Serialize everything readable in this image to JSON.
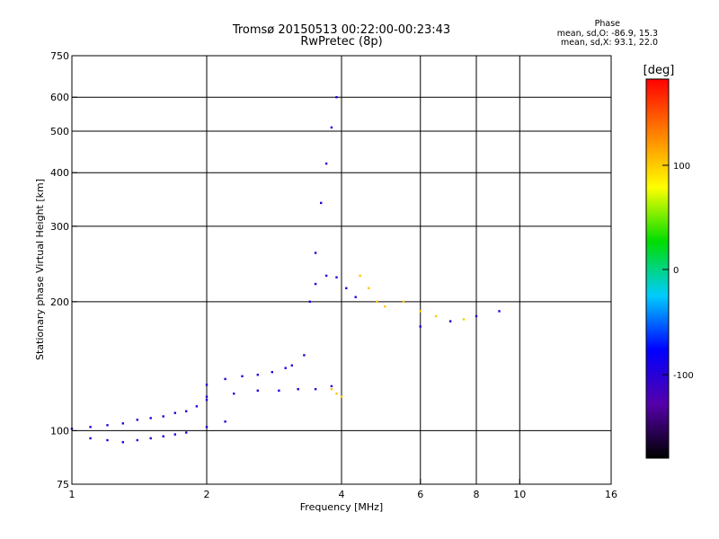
{
  "header": {
    "title_line1": "Tromsø 20150513 00:22:00-00:23:43",
    "title_line2": "RwPretec (8p)"
  },
  "stats": {
    "heading": "Phase",
    "o_line": "mean, sd,O: -86.9, 15.3",
    "x_line": "mean, sd,X:  93.1, 22.0"
  },
  "colorbar": {
    "label": "[deg]",
    "tick_labels": [
      "100",
      "0",
      "-100"
    ],
    "stops": [
      "#000000",
      "#5500aa",
      "#0000ff",
      "#00ccff",
      "#00dd00",
      "#ffff00",
      "#ff8000",
      "#ff0000"
    ]
  },
  "chart_data": {
    "type": "scatter",
    "title": "Tromsø 20150513 00:22:00-00:23:43",
    "subtitle": "RwPretec (8p)",
    "xlabel": "Frequency [MHz]",
    "ylabel": "Stationary phase Virtual Height [km]",
    "x_scale": "log",
    "y_scale": "log",
    "xlim": [
      1,
      16
    ],
    "ylim": [
      75,
      750
    ],
    "x_ticks": [
      1,
      2,
      4,
      6,
      8,
      10,
      16
    ],
    "x_tick_labels": [
      "1",
      "2",
      "4",
      "6",
      "8",
      "10",
      "16"
    ],
    "y_ticks": [
      75,
      100,
      200,
      300,
      400,
      500,
      600,
      750
    ],
    "y_tick_labels": [
      "75",
      "100",
      "200",
      "300",
      "400",
      "500",
      "600",
      "750"
    ],
    "grid": true,
    "color_scale": {
      "label": "[deg]",
      "range": [
        -180,
        180
      ],
      "ticks": [
        100,
        0,
        -100
      ]
    },
    "traces": [
      {
        "name": "",
        "phase": -100,
        "points": [
          [
            1.0,
            101
          ],
          [
            1.1,
            102
          ],
          [
            1.2,
            103
          ],
          [
            1.3,
            104
          ],
          [
            1.4,
            106
          ],
          [
            1.5,
            107
          ],
          [
            1.6,
            108
          ],
          [
            1.7,
            110
          ],
          [
            1.8,
            111
          ],
          [
            1.9,
            114
          ],
          [
            2.0,
            118
          ]
        ]
      },
      {
        "name": "",
        "phase": -100,
        "points": [
          [
            1.1,
            96
          ],
          [
            1.2,
            95
          ],
          [
            1.3,
            94
          ],
          [
            1.4,
            95
          ],
          [
            1.5,
            96
          ],
          [
            1.6,
            97
          ],
          [
            1.7,
            98
          ],
          [
            1.8,
            99
          ],
          [
            2.0,
            102
          ],
          [
            2.2,
            105
          ]
        ]
      },
      {
        "name": "",
        "phase": -100,
        "points": [
          [
            2.0,
            128
          ],
          [
            2.2,
            132
          ],
          [
            2.4,
            134
          ],
          [
            2.6,
            135
          ],
          [
            2.8,
            137
          ],
          [
            3.0,
            140
          ],
          [
            3.1,
            142
          ]
        ]
      },
      {
        "name": "",
        "phase": -100,
        "points": [
          [
            2.0,
            120
          ],
          [
            2.3,
            122
          ],
          [
            2.6,
            124
          ],
          [
            2.9,
            124
          ],
          [
            3.2,
            125
          ],
          [
            3.5,
            125
          ],
          [
            3.8,
            127
          ]
        ]
      },
      {
        "name": "",
        "phase": -100,
        "points": [
          [
            3.3,
            150
          ],
          [
            3.4,
            200
          ],
          [
            3.5,
            260
          ],
          [
            3.6,
            340
          ],
          [
            3.7,
            420
          ],
          [
            3.8,
            510
          ],
          [
            3.9,
            600
          ]
        ]
      },
      {
        "name": "",
        "phase": -100,
        "points": [
          [
            3.5,
            220
          ],
          [
            3.7,
            230
          ],
          [
            3.9,
            228
          ],
          [
            4.1,
            215
          ],
          [
            4.3,
            205
          ]
        ]
      },
      {
        "name": "",
        "phase": 100,
        "points": [
          [
            5.5,
            200
          ],
          [
            6.0,
            190
          ],
          [
            6.5,
            185
          ],
          [
            7.0,
            180
          ],
          [
            7.5,
            182
          ]
        ]
      },
      {
        "name": "",
        "phase": 100,
        "points": [
          [
            4.4,
            230
          ],
          [
            4.6,
            215
          ],
          [
            4.8,
            200
          ],
          [
            5.0,
            195
          ]
        ]
      },
      {
        "name": "",
        "phase": -100,
        "points": [
          [
            6.0,
            175
          ],
          [
            7.0,
            180
          ],
          [
            8.0,
            185
          ],
          [
            9.0,
            190
          ]
        ]
      },
      {
        "name": "",
        "phase": 100,
        "points": [
          [
            3.8,
            125
          ],
          [
            3.9,
            122
          ],
          [
            4.0,
            120
          ]
        ]
      }
    ]
  }
}
